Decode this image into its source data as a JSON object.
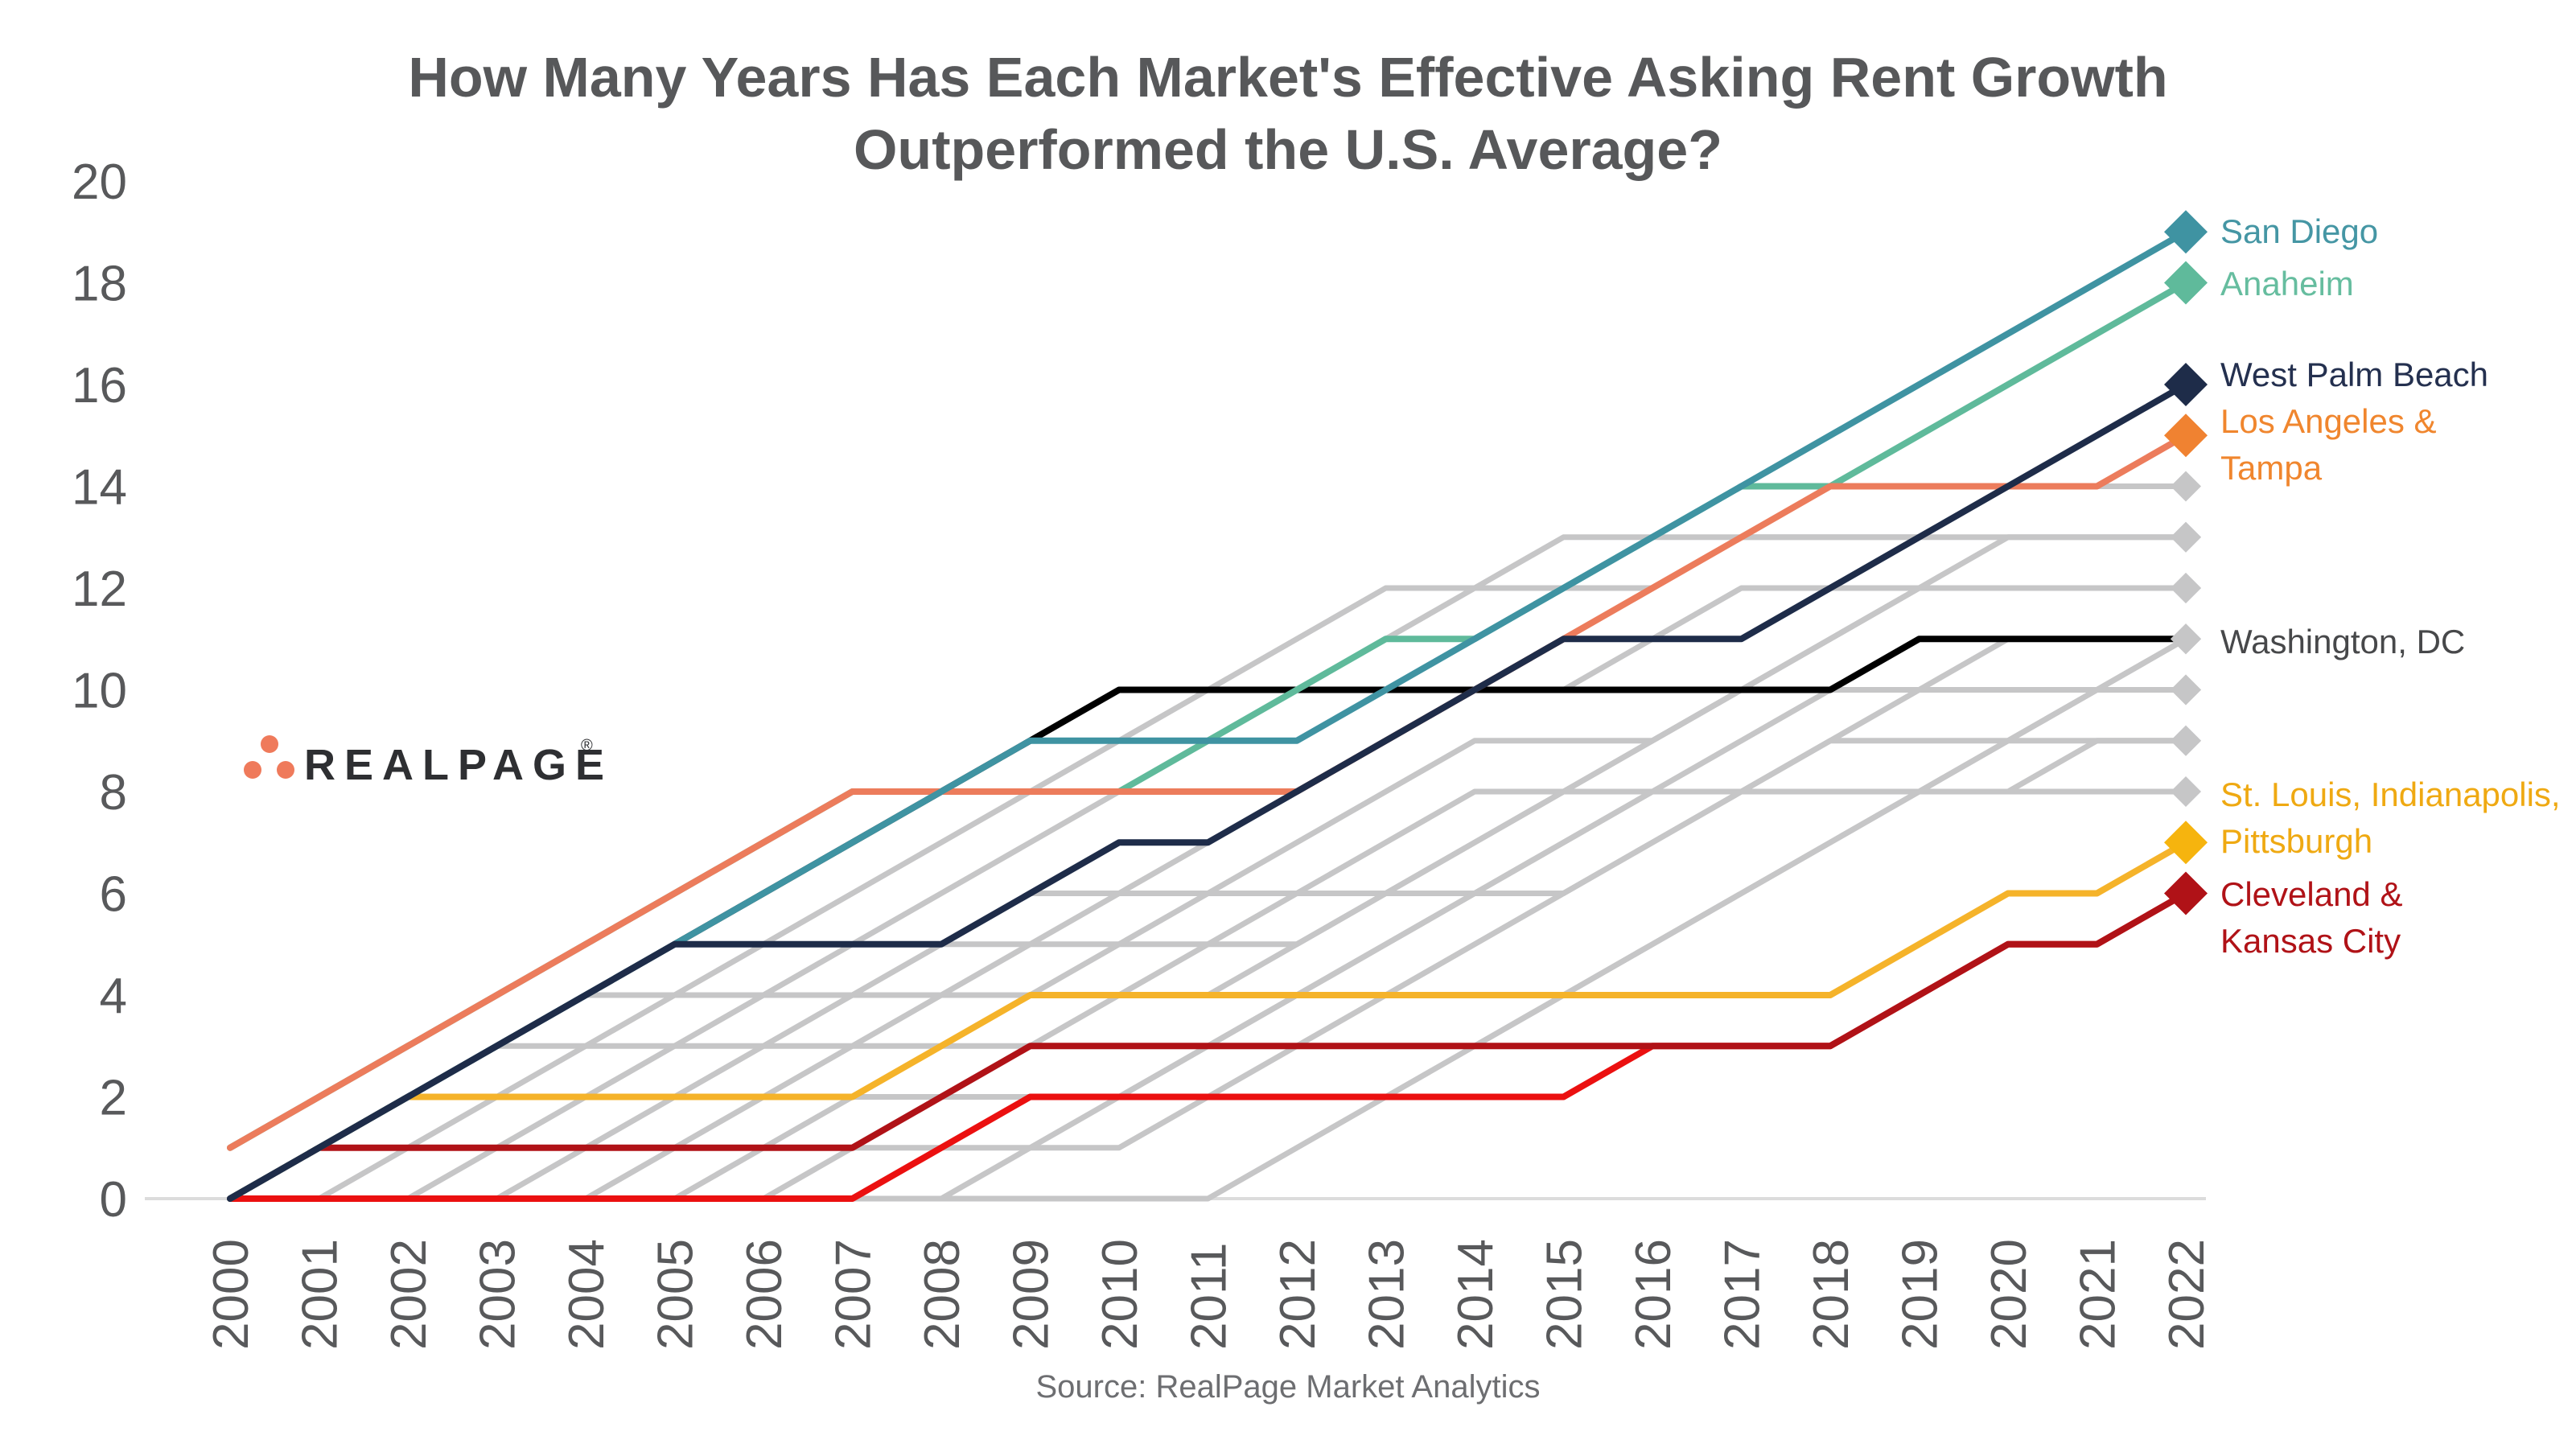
{
  "title": {
    "line1": "How Many Years Has Each Market's Effective Asking Rent Growth",
    "line2": "Outperformed the U.S. Average?"
  },
  "logo": {
    "text": "REALPAGE",
    "registered": "®"
  },
  "source": "Source: RealPage Market Analytics",
  "colors": {
    "background": "#FFFFFF",
    "axis_line": "#DCDCDC",
    "tick_text": "#58595B",
    "title_text": "#57585A",
    "source_text": "#6D6E71",
    "logo_text": "#2E2F32",
    "logo_dots": "#EF7A5B",
    "context_gray": "#C6C6C7"
  },
  "chart_data": {
    "type": "line",
    "title": "How Many Years Has Each Market's Effective Asking Rent Growth Outperformed the U.S. Average?",
    "xlabel": "",
    "ylabel": "",
    "x": [
      2000,
      2001,
      2002,
      2003,
      2004,
      2005,
      2006,
      2007,
      2008,
      2009,
      2010,
      2011,
      2012,
      2013,
      2014,
      2015,
      2016,
      2017,
      2018,
      2019,
      2020,
      2021,
      2022
    ],
    "ylim": [
      0,
      20
    ],
    "yticks": [
      0,
      2,
      4,
      6,
      8,
      10,
      12,
      14,
      16,
      18,
      20
    ],
    "grid": false,
    "legend_position": "end-of-line labels at right edge",
    "series": [
      {
        "name": "other-market-01",
        "role": "context",
        "color": "#C6C6C7",
        "width": 7,
        "marker": "small",
        "values": [
          0,
          0,
          1,
          2,
          3,
          4,
          5,
          6,
          7,
          8,
          9,
          10,
          11,
          12,
          12,
          12,
          12,
          13,
          13,
          13,
          14,
          14,
          14
        ]
      },
      {
        "name": "other-market-02",
        "role": "context",
        "color": "#C6C6C7",
        "width": 7,
        "marker": "small",
        "values": [
          0,
          1,
          2,
          3,
          4,
          5,
          5,
          5,
          5,
          5,
          5,
          5,
          5,
          6,
          7,
          8,
          9,
          10,
          11,
          12,
          13,
          13,
          13
        ]
      },
      {
        "name": "other-market-03",
        "role": "context",
        "color": "#C6C6C7",
        "width": 7,
        "marker": "small",
        "values": [
          0,
          0,
          0,
          1,
          2,
          3,
          4,
          5,
          6,
          7,
          8,
          9,
          10,
          11,
          12,
          13,
          13,
          13,
          13,
          13,
          13,
          13,
          13
        ]
      },
      {
        "name": "other-market-04",
        "role": "context",
        "color": "#C6C6C7",
        "width": 7,
        "marker": "small",
        "values": [
          0,
          1,
          2,
          3,
          4,
          4,
          4,
          4,
          4,
          4,
          4,
          4,
          5,
          6,
          7,
          8,
          9,
          10,
          11,
          12,
          12,
          12,
          12
        ]
      },
      {
        "name": "other-market-05",
        "role": "context",
        "color": "#C6C6C7",
        "width": 7,
        "marker": "small",
        "values": [
          0,
          0,
          0,
          0,
          0,
          1,
          2,
          3,
          4,
          5,
          6,
          7,
          8,
          9,
          10,
          10,
          11,
          12,
          12,
          12,
          12,
          12,
          12
        ]
      },
      {
        "name": "other-market-06",
        "role": "context",
        "color": "#C6C6C7",
        "width": 7,
        "marker": "small",
        "values": [
          0,
          1,
          2,
          3,
          3,
          3,
          3,
          3,
          3,
          3,
          3,
          3,
          3,
          3,
          3,
          4,
          5,
          6,
          7,
          8,
          9,
          10,
          11
        ]
      },
      {
        "name": "other-market-07",
        "role": "context",
        "color": "#C6C6C7",
        "width": 7,
        "marker": "small",
        "values": [
          0,
          0,
          0,
          0,
          1,
          2,
          3,
          4,
          5,
          6,
          6,
          6,
          6,
          6,
          6,
          6,
          7,
          8,
          9,
          10,
          11,
          11,
          11
        ]
      },
      {
        "name": "other-market-08",
        "role": "context",
        "color": "#C6C6C7",
        "width": 7,
        "marker": "small",
        "values": [
          0,
          1,
          2,
          2,
          2,
          2,
          2,
          2,
          2,
          2,
          2,
          3,
          4,
          5,
          6,
          7,
          8,
          9,
          10,
          10,
          10,
          10,
          10
        ]
      },
      {
        "name": "other-market-09",
        "role": "context",
        "color": "#C6C6C7",
        "width": 7,
        "marker": "small",
        "values": [
          0,
          0,
          0,
          0,
          0,
          0,
          1,
          2,
          3,
          4,
          5,
          6,
          7,
          8,
          9,
          9,
          9,
          10,
          10,
          10,
          10,
          10,
          10
        ]
      },
      {
        "name": "other-market-10",
        "role": "context",
        "color": "#C6C6C7",
        "width": 7,
        "marker": "small",
        "values": [
          0,
          0,
          0,
          0,
          0,
          0,
          0,
          0,
          0,
          0,
          0,
          0,
          1,
          2,
          3,
          4,
          5,
          6,
          7,
          8,
          9,
          10,
          11
        ]
      },
      {
        "name": "other-market-11",
        "role": "context",
        "color": "#C6C6C7",
        "width": 7,
        "marker": "small",
        "values": [
          0,
          1,
          1,
          1,
          1,
          1,
          1,
          1,
          1,
          1,
          1,
          2,
          3,
          4,
          5,
          6,
          7,
          8,
          9,
          9,
          9,
          9,
          9
        ]
      },
      {
        "name": "other-market-12",
        "role": "context",
        "color": "#C6C6C7",
        "width": 7,
        "marker": "small",
        "values": [
          0,
          0,
          0,
          0,
          0,
          0,
          0,
          1,
          2,
          3,
          4,
          5,
          6,
          7,
          8,
          8,
          8,
          8,
          8,
          8,
          8,
          9,
          9
        ]
      },
      {
        "name": "other-market-13",
        "role": "context",
        "color": "#C6C6C7",
        "width": 7,
        "marker": "small",
        "values": [
          0,
          0,
          0,
          0,
          0,
          0,
          0,
          0,
          0,
          1,
          2,
          3,
          4,
          5,
          6,
          7,
          8,
          8,
          8,
          8,
          8,
          8,
          8
        ]
      },
      {
        "name": "kansas-city",
        "role": "highlight",
        "color": "#EB1010",
        "width": 8,
        "marker": "none",
        "values": [
          0,
          0,
          0,
          0,
          0,
          0,
          0,
          0,
          1,
          2,
          2,
          2,
          2,
          2,
          2,
          2,
          3,
          3,
          3,
          4,
          5,
          5,
          6
        ]
      },
      {
        "name": "cleveland",
        "role": "highlight",
        "color": "#B01217",
        "width": 8,
        "marker": "diamond",
        "marker_color": "#B01217",
        "label_lines": [
          "Cleveland &",
          "Kansas City"
        ],
        "label_color": "#B01217",
        "label_y": [
          1126,
          1184
        ],
        "values": [
          0,
          1,
          1,
          1,
          1,
          1,
          1,
          1,
          2,
          3,
          3,
          3,
          3,
          3,
          3,
          3,
          3,
          3,
          3,
          4,
          5,
          5,
          6
        ]
      },
      {
        "name": "st-louis-indianapolis-pittsburgh",
        "role": "highlight",
        "color": "#F5B32A",
        "width": 8,
        "marker": "diamond",
        "marker_color": "#F6B40E",
        "label_lines": [
          "St. Louis, Indianapolis,",
          "Pittsburgh"
        ],
        "label_color": "#EFA912",
        "label_y": [
          1002,
          1060
        ],
        "values": [
          0,
          1,
          2,
          2,
          2,
          2,
          2,
          2,
          3,
          4,
          4,
          4,
          4,
          4,
          4,
          4,
          4,
          4,
          4,
          5,
          6,
          6,
          7
        ]
      },
      {
        "name": "washington-dc",
        "role": "highlight",
        "color": "#000000",
        "width": 8,
        "marker": "none",
        "label_lines": [
          "Washington, DC"
        ],
        "label_color": "#47484A",
        "label_y": [
          812
        ],
        "values": [
          0,
          1,
          2,
          3,
          4,
          5,
          6,
          7,
          8,
          9,
          10,
          10,
          10,
          10,
          10,
          10,
          10,
          10,
          10,
          11,
          11,
          11,
          11
        ]
      },
      {
        "name": "anaheim",
        "role": "highlight",
        "color": "#5FBA9B",
        "width": 8,
        "marker": "diamond",
        "marker_color": "#5FBA9B",
        "label_lines": [
          "Anaheim"
        ],
        "label_color": "#66BD9F",
        "label_y": [
          367
        ],
        "values": [
          1,
          2,
          3,
          4,
          5,
          6,
          7,
          8,
          8,
          8,
          8,
          9,
          10,
          11,
          11,
          12,
          13,
          14,
          14,
          15,
          16,
          17,
          18
        ]
      },
      {
        "name": "los-angeles-and-tampa",
        "role": "highlight",
        "color": "#EC7C5C",
        "width": 8,
        "marker": "diamond",
        "marker_color": "#F08231",
        "label_lines": [
          "Los Angeles &",
          "Tampa"
        ],
        "label_color": "#F0862E",
        "label_y": [
          538,
          596
        ],
        "values": [
          1,
          2,
          3,
          4,
          5,
          6,
          7,
          8,
          8,
          8,
          8,
          8,
          8,
          9,
          10,
          11,
          12,
          13,
          14,
          14,
          14,
          14,
          15
        ]
      },
      {
        "name": "san-diego",
        "role": "highlight",
        "color": "#3F93A2",
        "width": 8,
        "marker": "diamond",
        "marker_color": "#3F93A2",
        "label_lines": [
          "San Diego"
        ],
        "label_color": "#4596A4",
        "label_y": [
          302
        ],
        "values": [
          0,
          1,
          2,
          3,
          4,
          5,
          6,
          7,
          8,
          9,
          9,
          9,
          9,
          10,
          11,
          12,
          13,
          14,
          15,
          16,
          17,
          18,
          19
        ]
      },
      {
        "name": "west-palm-beach",
        "role": "highlight",
        "color": "#1E2C49",
        "width": 8,
        "marker": "diamond",
        "marker_color": "#1E2C49",
        "label_lines": [
          "West Palm Beach"
        ],
        "label_color": "#24304F",
        "label_y": [
          480
        ],
        "values": [
          0,
          1,
          2,
          3,
          4,
          5,
          5,
          5,
          5,
          6,
          7,
          7,
          8,
          9,
          10,
          11,
          11,
          11,
          12,
          13,
          14,
          15,
          16
        ]
      }
    ]
  }
}
